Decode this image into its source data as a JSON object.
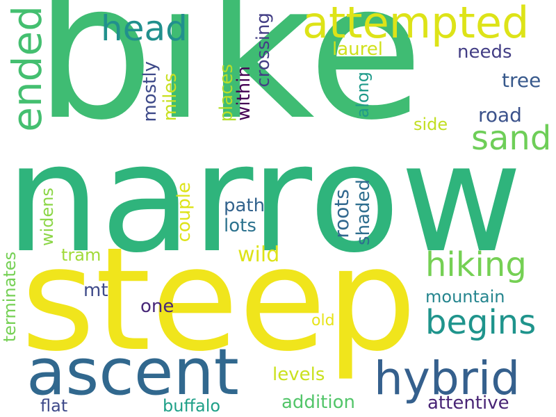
{
  "words": {
    "bike": "bike",
    "narrow": "narrow",
    "steep": "steep",
    "ascent": "ascent",
    "hybrid": "hybrid",
    "attempted": "attempted",
    "head": "head",
    "ended": "ended",
    "sand": "sand",
    "hiking": "hiking",
    "begins": "begins",
    "laurel": "laurel",
    "needs": "needs",
    "tree": "tree",
    "road": "road",
    "side": "side",
    "path": "path",
    "lots": "lots",
    "wild": "wild",
    "tram": "tram",
    "mt": "mt",
    "one": "one",
    "old": "old",
    "mountain": "mountain",
    "levels": "levels",
    "addition": "addition",
    "attentive": "attentive",
    "flat": "flat",
    "buffalo": "buffalo",
    "crossing": "crossing",
    "within": "within",
    "places": "places",
    "mostly": "mostly",
    "miles": "miles",
    "along": "along",
    "roots": "roots",
    "shaded": "shaded",
    "couple": "couple",
    "widens": "widens",
    "terminates": "terminates"
  },
  "colors": {
    "background": "#ffffff",
    "palette": "viridis"
  }
}
